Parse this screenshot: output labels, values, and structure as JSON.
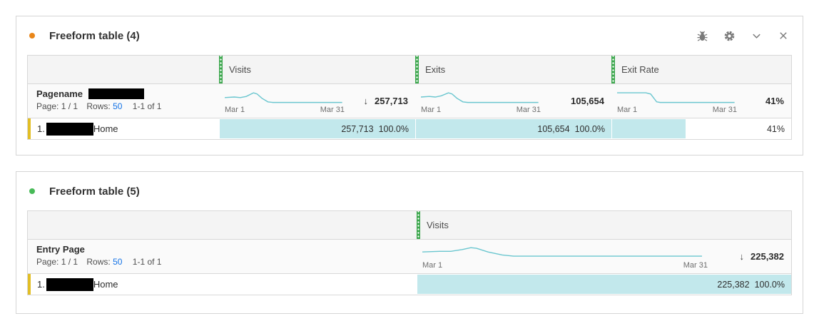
{
  "colors": {
    "cell_highlight": "#C2E8EC",
    "sparkline": "#6AC6CF",
    "column_handle_green": "#3DA74E",
    "row_indicator_yellow": "#E2BE25",
    "panel1_dot": "#E98619",
    "panel2_dot": "#47BA57",
    "link_blue": "#1473E6"
  },
  "panel1": {
    "title": "Freeform table (4)",
    "toolbar_icons": [
      "debug-bug-icon",
      "gear-icon",
      "chevron-down-icon",
      "close-icon"
    ],
    "dimension": {
      "name": "Pagename",
      "page_info": "Page: 1 / 1",
      "rows_label": "Rows:",
      "rows_value": "50",
      "range_info": "1-1 of 1"
    },
    "columns": [
      {
        "label": "Visits",
        "date_start": "Mar 1",
        "date_end": "Mar 31",
        "sort_arrow": "↓",
        "total": "257,713",
        "spark": [
          [
            0,
            14
          ],
          [
            8,
            13
          ],
          [
            13,
            14
          ],
          [
            18,
            12
          ],
          [
            24,
            6
          ],
          [
            27,
            8
          ],
          [
            31,
            15
          ],
          [
            36,
            21
          ],
          [
            40,
            22
          ],
          [
            98,
            22
          ]
        ]
      },
      {
        "label": "Exits",
        "date_start": "Mar 1",
        "date_end": "Mar 31",
        "sort_arrow": "",
        "total": "105,654",
        "spark": [
          [
            0,
            13
          ],
          [
            7,
            12
          ],
          [
            12,
            13
          ],
          [
            17,
            11
          ],
          [
            23,
            6
          ],
          [
            26,
            8
          ],
          [
            30,
            15
          ],
          [
            35,
            21
          ],
          [
            39,
            22
          ],
          [
            98,
            22
          ]
        ]
      },
      {
        "label": "Exit Rate",
        "date_start": "Mar 1",
        "date_end": "Mar 31",
        "sort_arrow": "",
        "total": "41%",
        "spark": [
          [
            0,
            6
          ],
          [
            24,
            6
          ],
          [
            28,
            8
          ],
          [
            33,
            21
          ],
          [
            36,
            22
          ],
          [
            98,
            22
          ]
        ]
      }
    ],
    "row": {
      "index": "1.",
      "name": "Home",
      "cells": [
        {
          "value": "257,713",
          "pct": "100.0%",
          "fill": 100
        },
        {
          "value": "105,654",
          "pct": "100.0%",
          "fill": 100
        },
        {
          "value": "41%",
          "pct": "",
          "fill": 41
        }
      ]
    }
  },
  "panel2": {
    "title": "Freeform table (5)",
    "dimension": {
      "name": "Entry Page",
      "page_info": "Page: 1 / 1",
      "rows_label": "Rows:",
      "rows_value": "50",
      "range_info": "1-1 of 1"
    },
    "columns": [
      {
        "label": "Visits",
        "date_start": "Mar 1",
        "date_end": "Mar 31",
        "sort_arrow": "↓",
        "total": "225,382",
        "spark": [
          [
            0,
            12
          ],
          [
            6,
            11
          ],
          [
            10,
            11
          ],
          [
            14,
            8
          ],
          [
            17,
            5
          ],
          [
            19,
            6
          ],
          [
            23,
            12
          ],
          [
            28,
            17
          ],
          [
            32,
            19
          ],
          [
            98,
            19
          ]
        ]
      }
    ],
    "row": {
      "index": "1.",
      "name": "Home",
      "cells": [
        {
          "value": "225,382",
          "pct": "100.0%",
          "fill": 100
        }
      ]
    }
  }
}
